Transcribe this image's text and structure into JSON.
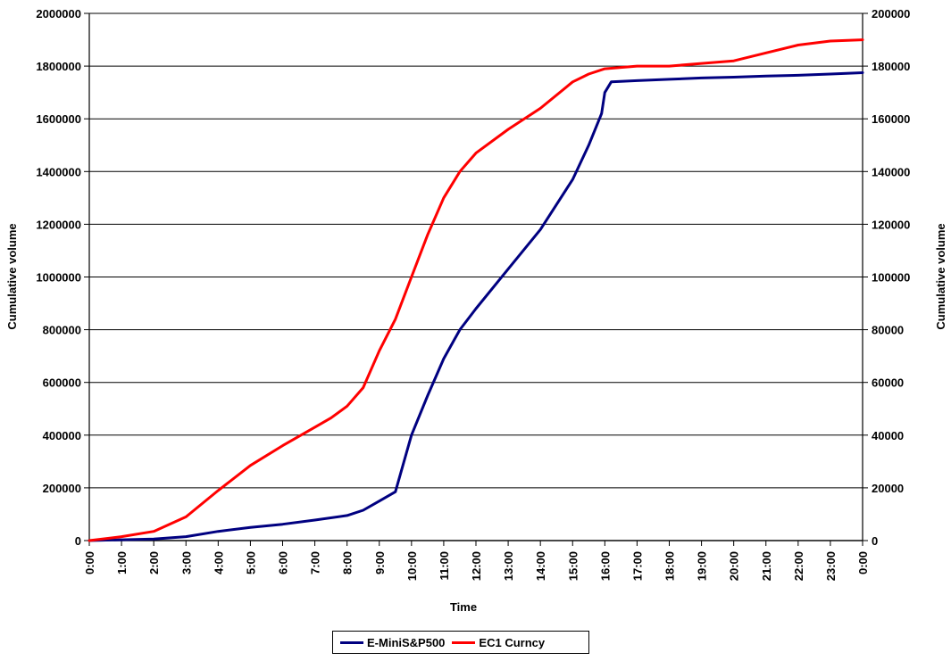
{
  "chart_data": {
    "type": "line",
    "xlabel": "Time",
    "ylabel_left": "Cumulative volume",
    "ylabel_right": "Cumulative volume",
    "x_tick_labels": [
      "0:00",
      "1:00",
      "2:00",
      "3:00",
      "4:00",
      "5:00",
      "6:00",
      "7:00",
      "8:00",
      "9:00",
      "10:00",
      "11:00",
      "12:00",
      "13:00",
      "14:00",
      "15:00",
      "16:00",
      "17:00",
      "18:00",
      "19:00",
      "20:00",
      "21:00",
      "22:00",
      "23:00",
      "0:00"
    ],
    "y_left_ticks": [
      "0",
      "200000",
      "400000",
      "600000",
      "800000",
      "1000000",
      "1200000",
      "1400000",
      "1600000",
      "1800000",
      "2000000"
    ],
    "y_right_ticks": [
      "0",
      "20000",
      "40000",
      "60000",
      "80000",
      "100000",
      "120000",
      "140000",
      "160000",
      "180000",
      "200000"
    ],
    "ylim_left": [
      0,
      2000000
    ],
    "ylim_right": [
      0,
      200000
    ],
    "xlim": [
      0,
      24
    ],
    "grid": "horizontal",
    "legend_position": "bottom",
    "series": [
      {
        "name": "E-MiniS&P500",
        "axis": "left",
        "color": "#000080",
        "x": [
          0,
          1,
          2,
          3,
          4,
          5,
          6,
          7,
          8,
          8.5,
          9,
          9.5,
          10,
          10.5,
          11,
          11.5,
          12,
          13,
          14,
          15,
          15.5,
          15.9,
          16.0,
          16.2,
          17,
          18,
          19,
          20,
          21,
          22,
          23,
          24
        ],
        "y": [
          0,
          3000,
          6000,
          15000,
          35000,
          50000,
          62000,
          78000,
          95000,
          115000,
          150000,
          185000,
          400000,
          550000,
          690000,
          800000,
          880000,
          1030000,
          1180000,
          1370000,
          1500000,
          1620000,
          1700000,
          1740000,
          1745000,
          1750000,
          1755000,
          1758000,
          1762000,
          1765000,
          1770000,
          1775000
        ]
      },
      {
        "name": "EC1 Curncy",
        "axis": "right",
        "color": "#ff0000",
        "x": [
          0,
          1,
          2,
          3,
          4,
          5,
          6,
          7,
          7.5,
          8,
          8.5,
          9,
          9.5,
          10,
          10.5,
          11,
          11.5,
          12,
          13,
          14,
          15,
          15.5,
          16,
          17,
          18,
          19,
          20,
          21,
          22,
          23,
          24
        ],
        "y": [
          0,
          1500,
          3500,
          9000,
          19000,
          28500,
          36000,
          43000,
          46500,
          51000,
          58000,
          72000,
          84000,
          100000,
          116000,
          130000,
          140000,
          147000,
          156000,
          164000,
          174000,
          177000,
          179000,
          180000,
          180000,
          181000,
          182000,
          185000,
          188000,
          189500,
          190000
        ]
      }
    ]
  }
}
